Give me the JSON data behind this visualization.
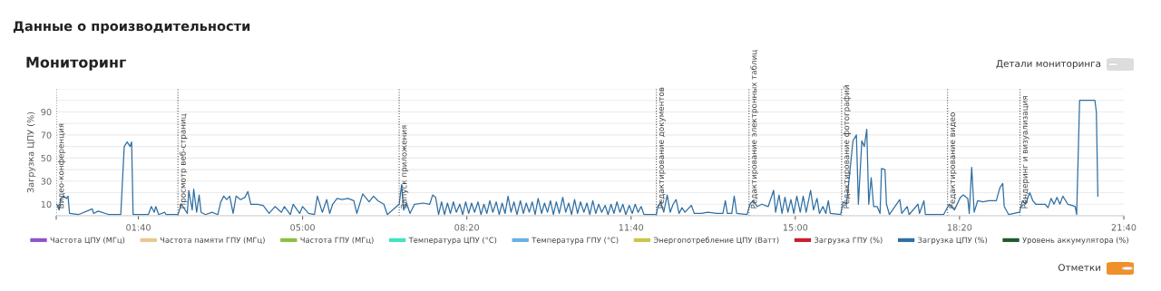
{
  "chart_data": {
    "type": "line",
    "title": "Данные о производительности",
    "subtitle": "Мониторинг",
    "ylabel": "Загрузка ЦПУ (%)",
    "annotations": [
      "Детали мониторинга",
      "Отметки"
    ],
    "xlim": [
      0,
      21.667
    ],
    "xticks": [
      {
        "value": 0,
        "label": null
      },
      {
        "value": 1.667,
        "label": "01:40"
      },
      {
        "value": 5,
        "label": "05:00"
      },
      {
        "value": 8.333,
        "label": "08:20"
      },
      {
        "value": 11.667,
        "label": "11:40"
      },
      {
        "value": 15,
        "label": "15:00"
      },
      {
        "value": 18.333,
        "label": "18:20"
      },
      {
        "value": 21.667,
        "label": "21:40"
      }
    ],
    "ylim": [
      0,
      110
    ],
    "yticks": [
      {
        "value": 0,
        "label": null
      },
      10,
      {
        "value": 20,
        "label": null
      },
      30,
      {
        "value": 40,
        "label": null
      },
      50,
      {
        "value": 60,
        "label": null
      },
      70,
      {
        "value": 80,
        "label": null
      },
      90,
      {
        "value": 100,
        "label": null
      },
      {
        "value": 110,
        "label": null
      }
    ],
    "grid": "y",
    "legend": "bottom",
    "marker": "none",
    "line_style": "solid",
    "ref_lines": [
      {
        "axis": "x",
        "value": 0.0,
        "label": "Видео-конференция",
        "color": "#555555",
        "line_style": "dotted"
      },
      {
        "axis": "x",
        "value": 2.47,
        "label": "Просмотр веб-страниц",
        "color": "#555555",
        "line_style": "dotted"
      },
      {
        "axis": "x",
        "value": 6.96,
        "label": "Запуск приложения",
        "color": "#555555",
        "line_style": "dotted"
      },
      {
        "axis": "x",
        "value": 12.18,
        "label": "Редактирование документов",
        "color": "#555555",
        "line_style": "dotted"
      },
      {
        "axis": "x",
        "value": 14.06,
        "label": "Редактирование электронных таблиц",
        "color": "#555555",
        "line_style": "dotted"
      },
      {
        "axis": "x",
        "value": 15.94,
        "label": "Редактирование фотографий",
        "color": "#555555",
        "line_style": "dotted"
      },
      {
        "axis": "x",
        "value": 18.09,
        "label": "Редактирование видео",
        "color": "#555555",
        "line_style": "dotted"
      },
      {
        "axis": "x",
        "value": 19.56,
        "label": "Рендеринг и визуализация",
        "color": "#555555",
        "line_style": "dotted"
      }
    ],
    "series": [
      {
        "name": "Частота ЦПУ (МГц)",
        "color": "#8e52c8"
      },
      {
        "name": "Частота памяти ГПУ (МГц)",
        "color": "#e6c98c"
      },
      {
        "name": "Частота ГПУ (МГц)",
        "color": "#8dbf3f"
      },
      {
        "name": "Температура ЦПУ (°C)",
        "color": "#3fe3c2"
      },
      {
        "name": "Температура ГПУ (°C)",
        "color": "#6aafe2"
      },
      {
        "name": "Энергопотребление ЦПУ (Ватт)",
        "color": "#c9c64a"
      },
      {
        "name": "Загрузка ГПУ (%)",
        "color": "#c81e2e"
      },
      {
        "name": "Загрузка ЦПУ (%)",
        "color": "#2f6fa3",
        "x": [
          0.01,
          0.06,
          0.09,
          0.15,
          0.21,
          0.24,
          0.27,
          0.45,
          0.73,
          0.76,
          0.85,
          1.07,
          1.31,
          1.38,
          1.44,
          1.5,
          1.53,
          1.56,
          1.87,
          1.93,
          1.99,
          2.02,
          2.08,
          2.2,
          2.23,
          2.47,
          2.54,
          2.66,
          2.69,
          2.76,
          2.79,
          2.85,
          2.9,
          2.94,
          3.03,
          3.16,
          3.28,
          3.34,
          3.4,
          3.46,
          3.52,
          3.59,
          3.65,
          3.74,
          3.83,
          3.89,
          3.95,
          4.08,
          4.2,
          4.32,
          4.44,
          4.57,
          4.63,
          4.75,
          4.81,
          4.94,
          5.0,
          5.12,
          5.24,
          5.3,
          5.4,
          5.49,
          5.55,
          5.61,
          5.7,
          5.8,
          5.92,
          6.04,
          6.1,
          6.22,
          6.35,
          6.44,
          6.53,
          6.65,
          6.72,
          6.96,
          7.01,
          7.05,
          7.11,
          7.18,
          7.27,
          7.45,
          7.58,
          7.64,
          7.7,
          7.76,
          7.82,
          7.88,
          7.94,
          8.0,
          8.06,
          8.12,
          8.19,
          8.25,
          8.31,
          8.37,
          8.43,
          8.49,
          8.56,
          8.62,
          8.68,
          8.74,
          8.8,
          8.86,
          8.93,
          8.99,
          9.05,
          9.11,
          9.17,
          9.23,
          9.29,
          9.35,
          9.42,
          9.48,
          9.54,
          9.6,
          9.66,
          9.72,
          9.78,
          9.85,
          9.91,
          9.97,
          10.03,
          10.09,
          10.15,
          10.21,
          10.28,
          10.34,
          10.4,
          10.46,
          10.52,
          10.58,
          10.64,
          10.71,
          10.77,
          10.83,
          10.89,
          10.95,
          11.01,
          11.07,
          11.14,
          11.2,
          11.26,
          11.32,
          11.38,
          11.44,
          11.5,
          11.56,
          11.63,
          11.69,
          11.75,
          11.81,
          11.87,
          11.93,
          12.12,
          12.18,
          12.21,
          12.27,
          12.33,
          12.4,
          12.46,
          12.52,
          12.58,
          12.64,
          12.7,
          12.76,
          12.89,
          12.95,
          13.1,
          13.22,
          13.41,
          13.53,
          13.58,
          13.62,
          13.71,
          13.76,
          13.81,
          14.02,
          14.08,
          14.14,
          14.23,
          14.32,
          14.45,
          14.56,
          14.6,
          14.67,
          14.73,
          14.79,
          14.85,
          14.91,
          14.97,
          15.03,
          15.1,
          15.16,
          15.22,
          15.31,
          15.37,
          15.44,
          15.49,
          15.56,
          15.62,
          15.67,
          15.71,
          15.92,
          15.97,
          16.04,
          16.17,
          16.24,
          16.28,
          16.35,
          16.4,
          16.45,
          16.49,
          16.54,
          16.59,
          16.66,
          16.72,
          16.75,
          16.82,
          16.85,
          16.91,
          17.12,
          17.16,
          17.27,
          17.31,
          17.49,
          17.52,
          17.61,
          17.64,
          18.01,
          18.12,
          18.23,
          18.35,
          18.41,
          18.5,
          18.53,
          18.58,
          18.63,
          18.7,
          18.81,
          18.93,
          19.08,
          19.15,
          19.21,
          19.24,
          19.33,
          19.55,
          19.61,
          19.67,
          19.76,
          19.82,
          19.88,
          20.07,
          20.13,
          20.19,
          20.25,
          20.31,
          20.37,
          20.43,
          20.53,
          20.62,
          20.68,
          20.71,
          20.77,
          21.08,
          21.11,
          21.14
        ],
        "values": [
          10,
          5,
          15,
          17,
          15,
          17,
          2,
          1,
          6,
          2,
          4,
          1,
          1,
          60,
          64,
          60,
          64,
          1,
          1,
          8,
          3,
          8,
          1,
          3,
          1,
          1,
          10,
          2,
          22,
          5,
          23,
          3,
          18,
          3,
          1,
          3,
          1,
          12,
          17,
          14,
          17,
          2,
          17,
          14,
          16,
          21,
          10,
          10,
          9,
          2,
          8,
          3,
          8,
          1,
          10,
          2,
          8,
          2,
          1,
          17,
          3,
          14,
          2,
          10,
          15,
          14,
          15,
          13,
          2,
          19,
          12,
          17,
          13,
          10,
          1,
          10,
          27,
          5,
          11,
          2,
          10,
          11,
          10,
          18,
          16,
          1,
          12,
          1,
          11,
          2,
          12,
          3,
          10,
          1,
          12,
          2,
          11,
          3,
          12,
          1,
          10,
          2,
          13,
          3,
          12,
          1,
          11,
          2,
          17,
          3,
          12,
          1,
          13,
          2,
          11,
          3,
          12,
          1,
          15,
          2,
          11,
          3,
          13,
          1,
          12,
          2,
          16,
          3,
          11,
          1,
          14,
          2,
          12,
          3,
          11,
          1,
          13,
          2,
          10,
          3,
          9,
          1,
          10,
          2,
          12,
          3,
          10,
          1,
          9,
          2,
          10,
          3,
          8,
          1,
          1,
          1,
          8,
          12,
          3,
          18,
          3,
          10,
          14,
          2,
          7,
          3,
          9,
          2,
          2,
          3,
          2,
          2,
          13,
          2,
          2,
          17,
          2,
          1,
          10,
          13,
          8,
          10,
          8,
          22,
          3,
          18,
          2,
          16,
          3,
          14,
          2,
          17,
          3,
          17,
          3,
          22,
          5,
          15,
          2,
          8,
          2,
          13,
          2,
          1,
          12,
          10,
          65,
          70,
          10,
          65,
          60,
          75,
          10,
          33,
          8,
          8,
          2,
          41,
          40,
          10,
          1,
          14,
          2,
          8,
          1,
          10,
          2,
          13,
          1,
          1,
          10,
          5,
          16,
          18,
          15,
          2,
          42,
          3,
          13,
          12,
          13,
          13,
          24,
          28,
          8,
          1,
          3,
          13,
          10,
          20,
          13,
          10,
          10,
          7,
          15,
          10,
          16,
          10,
          17,
          10,
          9,
          8,
          1,
          100,
          100,
          90,
          17
        ]
      },
      {
        "name": "Уровень аккумулятора (%)",
        "color": "#1f5a2c"
      }
    ]
  }
}
